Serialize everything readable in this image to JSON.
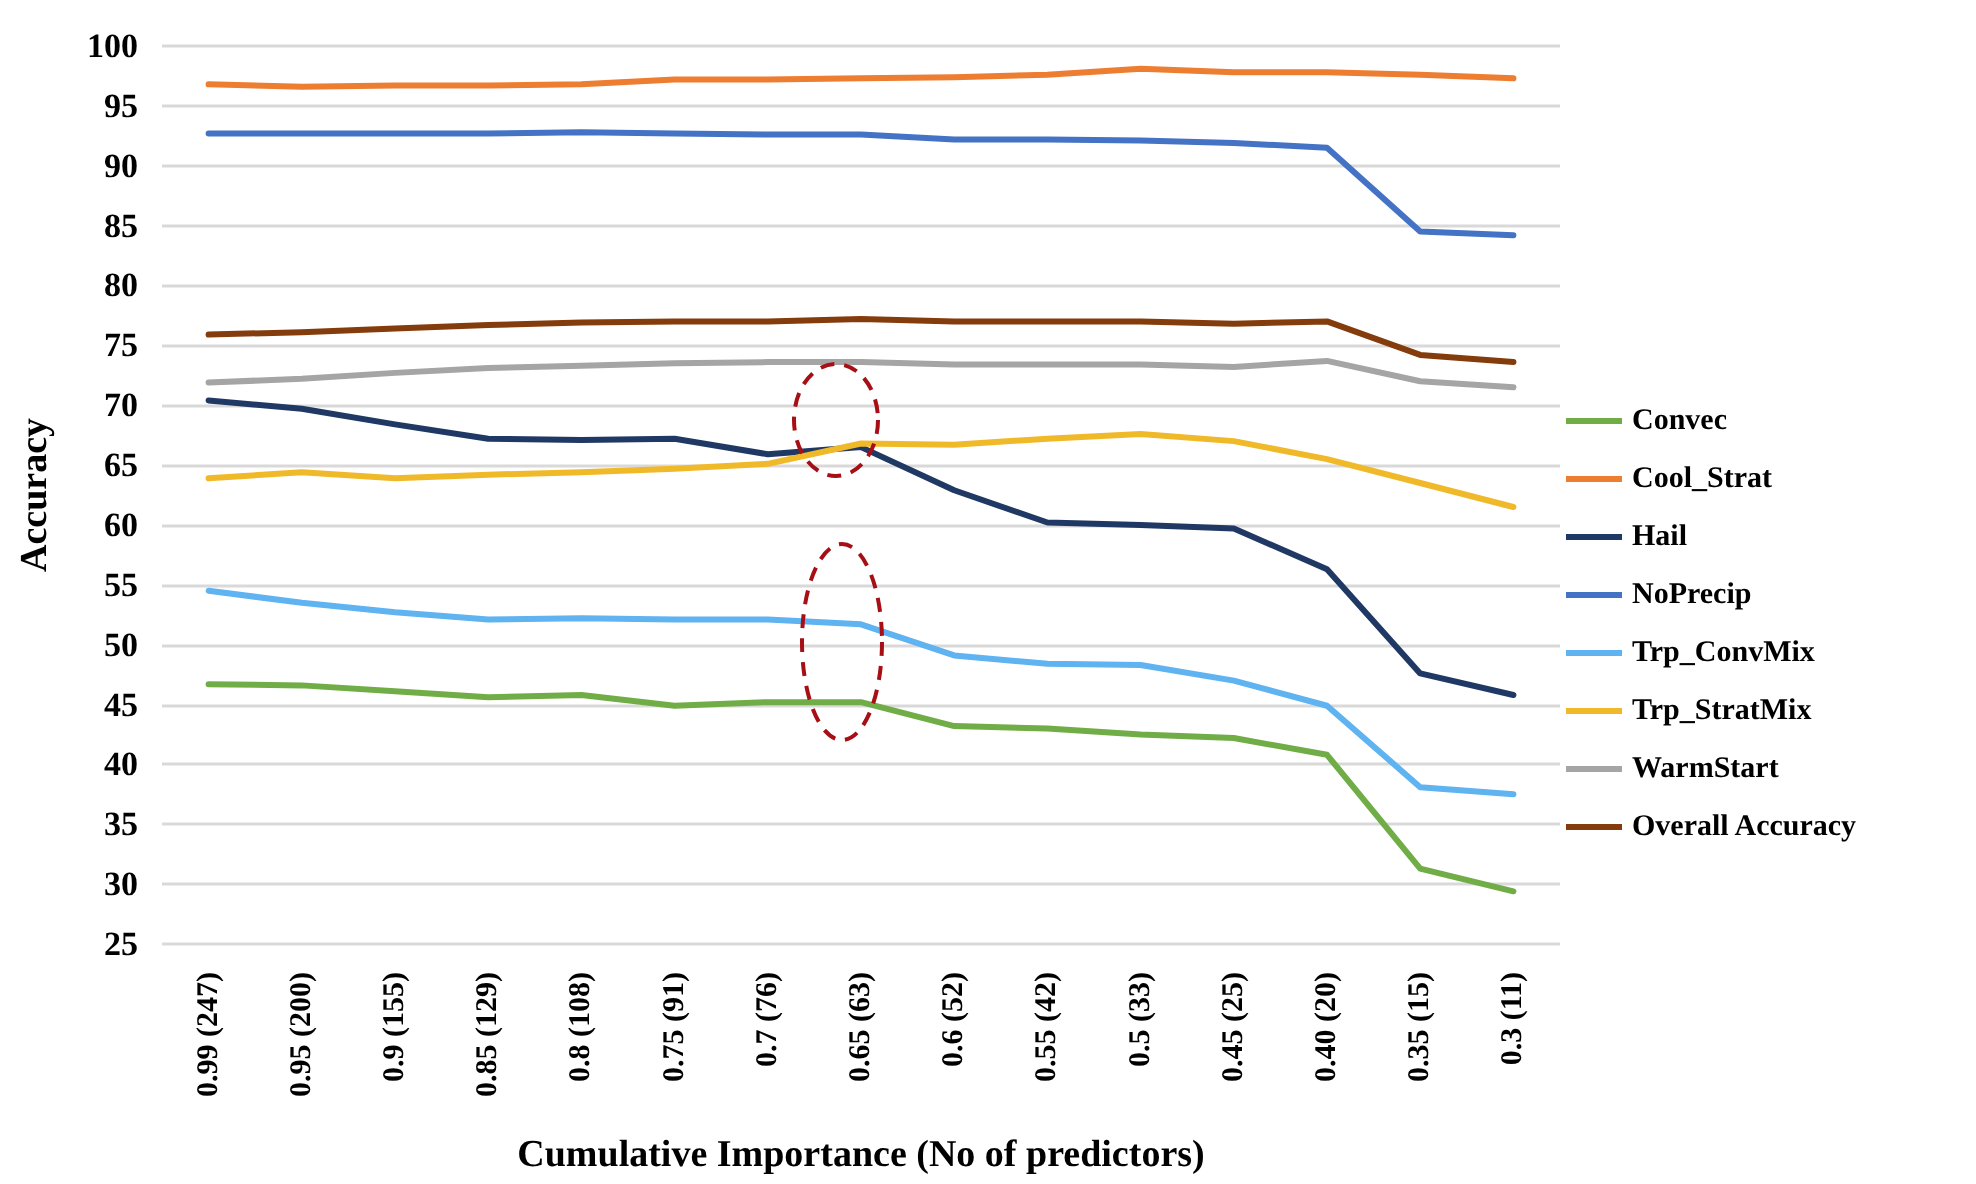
{
  "chart_data": {
    "type": "line",
    "xlabel": "Cumulative Importance (No of predictors)",
    "ylabel": "Accuracy",
    "categories": [
      "0.99 (247)",
      "0.95 (200)",
      "0.9 (155)",
      "0.85 (129)",
      "0.8 (108)",
      "0.75 (91)",
      "0.7 (76)",
      "0.65 (63)",
      "0.6 (52)",
      "0.55 (42)",
      "0.5 (33)",
      "0.45 (25)",
      "0.40 (20)",
      "0.35 (15)",
      "0.3 (11)"
    ],
    "ylim": [
      25,
      100
    ],
    "yticks": [
      25,
      30,
      35,
      40,
      45,
      50,
      55,
      60,
      65,
      70,
      75,
      80,
      85,
      90,
      95,
      100
    ],
    "grid": "y",
    "legend": "right",
    "marker": "none",
    "line_style": "solid",
    "series": [
      {
        "name": "Convec",
        "color": "#70ad47",
        "values": [
          46.7,
          46.6,
          46.1,
          45.6,
          45.8,
          44.9,
          45.2,
          45.2,
          43.2,
          43.0,
          42.5,
          42.2,
          40.8,
          31.3,
          29.4
        ]
      },
      {
        "name": "Cool_Strat",
        "color": "#ed7d31",
        "values": [
          96.8,
          96.6,
          96.7,
          96.7,
          96.8,
          97.2,
          97.2,
          97.3,
          97.4,
          97.6,
          98.1,
          97.8,
          97.8,
          97.6,
          97.3
        ]
      },
      {
        "name": "Hail",
        "color": "#1f3864",
        "values": [
          70.4,
          69.7,
          68.4,
          67.2,
          67.1,
          67.2,
          65.9,
          66.5,
          62.9,
          60.2,
          60.0,
          59.7,
          56.3,
          47.6,
          45.8
        ]
      },
      {
        "name": "NoPrecip",
        "color": "#4472c4",
        "values": [
          92.7,
          92.7,
          92.7,
          92.7,
          92.8,
          92.7,
          92.6,
          92.6,
          92.2,
          92.2,
          92.1,
          91.9,
          91.5,
          84.5,
          84.2
        ]
      },
      {
        "name": "Trp_ConvMix",
        "color": "#5eb3f0",
        "values": [
          54.5,
          53.5,
          52.7,
          52.1,
          52.2,
          52.1,
          52.1,
          51.7,
          49.1,
          48.4,
          48.3,
          47.0,
          44.9,
          38.1,
          37.5
        ]
      },
      {
        "name": "Trp_StratMix",
        "color": "#f0b92a",
        "values": [
          63.9,
          64.4,
          63.9,
          64.2,
          64.4,
          64.7,
          65.1,
          66.8,
          66.7,
          67.2,
          67.6,
          67.0,
          65.5,
          63.5,
          61.5
        ]
      },
      {
        "name": "WarmStart",
        "color": "#a5a5a5",
        "values": [
          71.9,
          72.2,
          72.7,
          73.1,
          73.3,
          73.5,
          73.6,
          73.6,
          73.4,
          73.4,
          73.4,
          73.2,
          73.7,
          72.0,
          71.5
        ]
      },
      {
        "name": "Overall Accuracy",
        "color": "#843c0c",
        "values": [
          75.9,
          76.1,
          76.4,
          76.7,
          76.9,
          77.0,
          77.0,
          77.2,
          77.0,
          77.0,
          77.0,
          76.8,
          77.0,
          74.2,
          73.6
        ]
      }
    ]
  }
}
